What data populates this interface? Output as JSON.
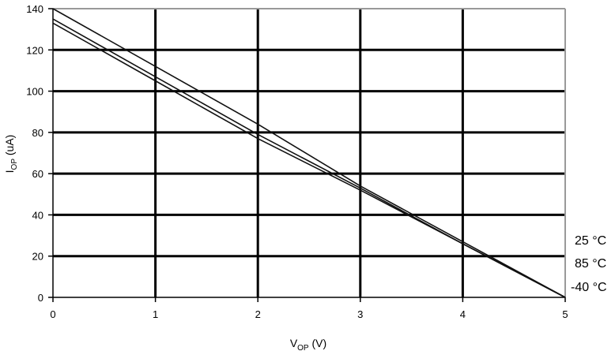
{
  "chart_data": {
    "type": "line",
    "title": "",
    "xlabel": {
      "main": "V",
      "sub": "OP",
      "unit": " (V)"
    },
    "ylabel": {
      "main": "I",
      "sub": "OP",
      "unit": " (uA)"
    },
    "xlim": [
      0,
      5
    ],
    "ylim": [
      0,
      140
    ],
    "xticks": [
      "0",
      "1",
      "2",
      "3",
      "4",
      "5"
    ],
    "yticks": [
      "0",
      "20",
      "40",
      "60",
      "80",
      "100",
      "120",
      "140"
    ],
    "grid": true,
    "series": [
      {
        "name": "25 °C",
        "x": [
          0,
          1,
          2,
          3,
          4,
          5
        ],
        "y": [
          140,
          112,
          84,
          54,
          27,
          0
        ]
      },
      {
        "name": "85 °C",
        "x": [
          0,
          1,
          2,
          3,
          4,
          5
        ],
        "y": [
          135,
          107,
          79,
          53,
          26,
          0
        ]
      },
      {
        "name": "-40 °C",
        "x": [
          0,
          1,
          2,
          3,
          4,
          5
        ],
        "y": [
          133,
          105,
          77,
          52,
          26,
          0
        ]
      }
    ],
    "legend_position": "right"
  }
}
